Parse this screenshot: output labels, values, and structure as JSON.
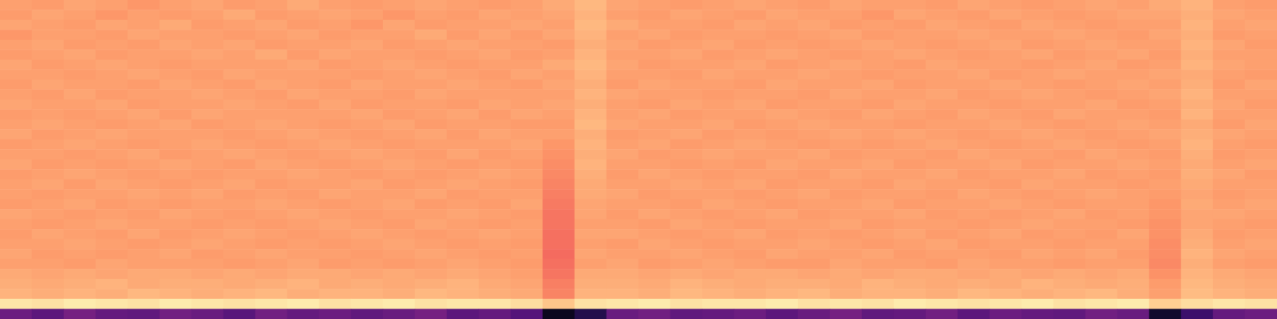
{
  "chart_data": {
    "type": "heatmap",
    "tick_labels": false,
    "zlim": [
      0,
      100
    ],
    "cells": [
      [
        80,
        79,
        81,
        80,
        78,
        80,
        81,
        79,
        80,
        82,
        80,
        79,
        80,
        81,
        80,
        79,
        80,
        82,
        85,
        81,
        80,
        79,
        80,
        81,
        80,
        79,
        81,
        80,
        80,
        79,
        81,
        80,
        79,
        80,
        81,
        80,
        82,
        84,
        80,
        79
      ],
      [
        79,
        81,
        80,
        78,
        80,
        79,
        80,
        82,
        79,
        80,
        81,
        80,
        78,
        80,
        79,
        81,
        80,
        81,
        84,
        80,
        79,
        81,
        80,
        79,
        81,
        80,
        80,
        78,
        81,
        80,
        79,
        81,
        80,
        79,
        80,
        81,
        81,
        83,
        81,
        80
      ],
      [
        81,
        80,
        79,
        81,
        80,
        82,
        79,
        80,
        81,
        79,
        80,
        78,
        81,
        79,
        80,
        80,
        81,
        80,
        85,
        82,
        80,
        80,
        79,
        81,
        80,
        81,
        79,
        80,
        79,
        81,
        80,
        79,
        81,
        80,
        79,
        80,
        80,
        84,
        80,
        81
      ],
      [
        78,
        80,
        80,
        79,
        81,
        80,
        80,
        79,
        80,
        81,
        79,
        80,
        80,
        82,
        79,
        81,
        79,
        81,
        84,
        80,
        81,
        79,
        80,
        80,
        79,
        80,
        81,
        79,
        80,
        80,
        81,
        80,
        80,
        81,
        80,
        79,
        81,
        83,
        79,
        80
      ],
      [
        80,
        81,
        79,
        80,
        79,
        81,
        80,
        81,
        79,
        80,
        80,
        81,
        79,
        80,
        81,
        80,
        80,
        79,
        83,
        81,
        79,
        80,
        81,
        79,
        80,
        79,
        80,
        81,
        80,
        79,
        80,
        81,
        79,
        80,
        81,
        80,
        80,
        84,
        81,
        79
      ],
      [
        79,
        80,
        81,
        79,
        80,
        80,
        81,
        80,
        82,
        79,
        81,
        80,
        80,
        79,
        80,
        81,
        79,
        80,
        84,
        80,
        80,
        81,
        79,
        80,
        81,
        80,
        79,
        80,
        81,
        80,
        79,
        80,
        81,
        79,
        80,
        81,
        79,
        83,
        80,
        80
      ],
      [
        81,
        79,
        80,
        81,
        80,
        79,
        80,
        80,
        80,
        81,
        79,
        80,
        81,
        80,
        79,
        80,
        80,
        82,
        85,
        81,
        79,
        80,
        80,
        81,
        79,
        80,
        81,
        80,
        79,
        81,
        80,
        80,
        79,
        80,
        81,
        79,
        80,
        84,
        81,
        80
      ],
      [
        80,
        80,
        79,
        80,
        81,
        80,
        79,
        81,
        80,
        80,
        80,
        79,
        80,
        81,
        80,
        79,
        81,
        80,
        84,
        80,
        80,
        79,
        81,
        80,
        80,
        81,
        80,
        79,
        80,
        80,
        81,
        79,
        80,
        81,
        80,
        80,
        81,
        82,
        80,
        79
      ],
      [
        79,
        81,
        80,
        80,
        79,
        81,
        80,
        79,
        81,
        80,
        79,
        81,
        80,
        80,
        81,
        80,
        79,
        81,
        83,
        79,
        81,
        80,
        80,
        79,
        81,
        80,
        80,
        81,
        79,
        80,
        80,
        81,
        80,
        79,
        80,
        81,
        80,
        83,
        79,
        81
      ],
      [
        80,
        79,
        81,
        79,
        80,
        80,
        81,
        80,
        79,
        81,
        80,
        80,
        79,
        81,
        80,
        80,
        80,
        80,
        84,
        81,
        80,
        80,
        79,
        80,
        80,
        79,
        81,
        80,
        80,
        81,
        79,
        80,
        81,
        80,
        79,
        80,
        81,
        84,
        80,
        80
      ],
      [
        81,
        80,
        80,
        81,
        79,
        80,
        80,
        81,
        80,
        79,
        81,
        79,
        80,
        80,
        79,
        81,
        80,
        81,
        83,
        80,
        79,
        81,
        80,
        81,
        79,
        80,
        80,
        79,
        81,
        80,
        80,
        79,
        80,
        80,
        81,
        79,
        80,
        83,
        81,
        79
      ],
      [
        79,
        80,
        79,
        80,
        81,
        79,
        81,
        80,
        80,
        80,
        80,
        81,
        79,
        80,
        81,
        79,
        81,
        80,
        84,
        80,
        81,
        79,
        80,
        80,
        81,
        80,
        79,
        81,
        80,
        79,
        81,
        80,
        79,
        81,
        80,
        80,
        79,
        84,
        80,
        80
      ],
      [
        80,
        81,
        80,
        79,
        80,
        81,
        79,
        80,
        81,
        80,
        79,
        80,
        81,
        79,
        80,
        80,
        79,
        79,
        85,
        81,
        80,
        80,
        81,
        79,
        80,
        81,
        80,
        80,
        79,
        80,
        80,
        81,
        80,
        79,
        80,
        81,
        80,
        82,
        79,
        81
      ],
      [
        81,
        79,
        80,
        81,
        80,
        80,
        80,
        79,
        80,
        81,
        80,
        79,
        80,
        81,
        79,
        81,
        80,
        80,
        83,
        79,
        80,
        81,
        79,
        80,
        79,
        80,
        81,
        80,
        81,
        80,
        79,
        80,
        81,
        80,
        79,
        80,
        81,
        83,
        81,
        80
      ],
      [
        79,
        80,
        81,
        80,
        79,
        80,
        81,
        80,
        79,
        80,
        81,
        80,
        79,
        80,
        80,
        80,
        81,
        78,
        84,
        80,
        81,
        79,
        80,
        81,
        80,
        79,
        80,
        79,
        80,
        81,
        80,
        79,
        80,
        81,
        80,
        79,
        80,
        84,
        80,
        79
      ],
      [
        80,
        80,
        79,
        80,
        81,
        79,
        80,
        81,
        80,
        79,
        80,
        81,
        80,
        79,
        81,
        79,
        80,
        77,
        83,
        81,
        79,
        80,
        81,
        80,
        80,
        81,
        79,
        80,
        80,
        79,
        81,
        80,
        80,
        79,
        81,
        80,
        79,
        83,
        79,
        80
      ],
      [
        81,
        79,
        80,
        79,
        80,
        81,
        80,
        79,
        81,
        80,
        79,
        80,
        81,
        80,
        79,
        80,
        79,
        76,
        84,
        80,
        80,
        79,
        80,
        79,
        81,
        80,
        80,
        81,
        79,
        80,
        80,
        81,
        79,
        80,
        80,
        81,
        80,
        82,
        80,
        81
      ],
      [
        79,
        80,
        81,
        80,
        79,
        80,
        79,
        80,
        80,
        81,
        80,
        79,
        80,
        79,
        80,
        81,
        80,
        75,
        83,
        79,
        81,
        80,
        79,
        80,
        80,
        79,
        81,
        80,
        80,
        81,
        79,
        80,
        80,
        81,
        79,
        80,
        79,
        83,
        81,
        79
      ],
      [
        80,
        81,
        79,
        81,
        80,
        79,
        80,
        81,
        79,
        80,
        80,
        81,
        79,
        80,
        81,
        80,
        79,
        74,
        82,
        80,
        80,
        81,
        80,
        81,
        79,
        80,
        80,
        79,
        81,
        80,
        80,
        79,
        81,
        80,
        80,
        79,
        80,
        82,
        80,
        80
      ],
      [
        80,
        79,
        80,
        80,
        81,
        80,
        81,
        79,
        80,
        79,
        81,
        80,
        80,
        81,
        79,
        80,
        80,
        73,
        82,
        81,
        79,
        80,
        80,
        79,
        80,
        81,
        79,
        80,
        80,
        79,
        81,
        80,
        79,
        80,
        81,
        80,
        79,
        81,
        79,
        80
      ],
      [
        79,
        80,
        81,
        79,
        80,
        79,
        80,
        80,
        81,
        80,
        79,
        80,
        81,
        79,
        80,
        79,
        81,
        72,
        81,
        80,
        80,
        79,
        81,
        80,
        79,
        80,
        80,
        81,
        79,
        80,
        80,
        81,
        80,
        79,
        80,
        80,
        78,
        82,
        80,
        81
      ],
      [
        81,
        80,
        79,
        80,
        79,
        81,
        80,
        79,
        80,
        81,
        80,
        79,
        80,
        80,
        81,
        80,
        79,
        71,
        81,
        79,
        81,
        80,
        79,
        80,
        81,
        79,
        80,
        80,
        81,
        79,
        80,
        79,
        80,
        81,
        79,
        80,
        78,
        81,
        81,
        80
      ],
      [
        80,
        79,
        80,
        81,
        80,
        80,
        79,
        80,
        79,
        80,
        81,
        80,
        79,
        81,
        80,
        79,
        80,
        71,
        80,
        80,
        79,
        81,
        80,
        79,
        80,
        80,
        81,
        79,
        80,
        80,
        79,
        80,
        81,
        80,
        80,
        79,
        77,
        81,
        80,
        79
      ],
      [
        79,
        81,
        80,
        79,
        81,
        79,
        80,
        81,
        80,
        79,
        80,
        81,
        80,
        79,
        80,
        81,
        80,
        70,
        81,
        81,
        80,
        79,
        80,
        81,
        79,
        80,
        79,
        80,
        81,
        79,
        80,
        81,
        79,
        80,
        79,
        81,
        77,
        82,
        79,
        80
      ],
      [
        80,
        80,
        81,
        80,
        79,
        80,
        81,
        80,
        79,
        80,
        79,
        80,
        81,
        80,
        79,
        80,
        79,
        70,
        80,
        79,
        81,
        80,
        79,
        80,
        80,
        81,
        80,
        79,
        80,
        81,
        79,
        80,
        80,
        79,
        80,
        80,
        76,
        83,
        80,
        81
      ],
      [
        81,
        79,
        80,
        79,
        80,
        81,
        79,
        80,
        81,
        80,
        80,
        79,
        80,
        81,
        80,
        79,
        80,
        69,
        81,
        80,
        80,
        81,
        80,
        79,
        81,
        80,
        80,
        81,
        79,
        80,
        80,
        79,
        81,
        80,
        81,
        79,
        76,
        84,
        81,
        80
      ],
      [
        80,
        80,
        79,
        81,
        80,
        80,
        80,
        79,
        80,
        81,
        79,
        80,
        79,
        80,
        81,
        80,
        79,
        70,
        80,
        81,
        79,
        80,
        81,
        80,
        79,
        79,
        81,
        80,
        80,
        79,
        81,
        80,
        80,
        79,
        80,
        80,
        75,
        83,
        80,
        79
      ],
      [
        82,
        81,
        82,
        81,
        82,
        82,
        81,
        82,
        81,
        82,
        82,
        81,
        82,
        81,
        82,
        81,
        80,
        71,
        82,
        82,
        81,
        82,
        81,
        82,
        82,
        81,
        82,
        81,
        82,
        82,
        81,
        82,
        81,
        82,
        81,
        82,
        77,
        84,
        82,
        81
      ],
      [
        83,
        82,
        83,
        84,
        82,
        83,
        83,
        82,
        83,
        84,
        82,
        83,
        82,
        83,
        84,
        82,
        81,
        73,
        83,
        83,
        82,
        84,
        83,
        82,
        83,
        83,
        82,
        84,
        83,
        82,
        83,
        82,
        84,
        83,
        82,
        83,
        79,
        85,
        83,
        82
      ],
      [
        84,
        83,
        84,
        83,
        85,
        84,
        83,
        84,
        85,
        83,
        84,
        84,
        83,
        85,
        84,
        83,
        82,
        74,
        84,
        84,
        83,
        85,
        84,
        83,
        84,
        85,
        83,
        84,
        84,
        83,
        85,
        84,
        83,
        84,
        85,
        83,
        80,
        86,
        84,
        83
      ],
      [
        95,
        94,
        96,
        95,
        94,
        96,
        95,
        94,
        95,
        96,
        94,
        95,
        96,
        94,
        95,
        95,
        93,
        88,
        94,
        95,
        96,
        94,
        95,
        95,
        96,
        94,
        95,
        94,
        96,
        95,
        94,
        95,
        96,
        94,
        95,
        96,
        90,
        93,
        95,
        94
      ],
      [
        32,
        28,
        34,
        30,
        29,
        33,
        31,
        27,
        33,
        30,
        32,
        29,
        31,
        34,
        28,
        30,
        26,
        5,
        14,
        31,
        33,
        29,
        30,
        32,
        28,
        31,
        34,
        29,
        30,
        33,
        28,
        32,
        30,
        29,
        33,
        31,
        8,
        20,
        30,
        32
      ]
    ]
  }
}
